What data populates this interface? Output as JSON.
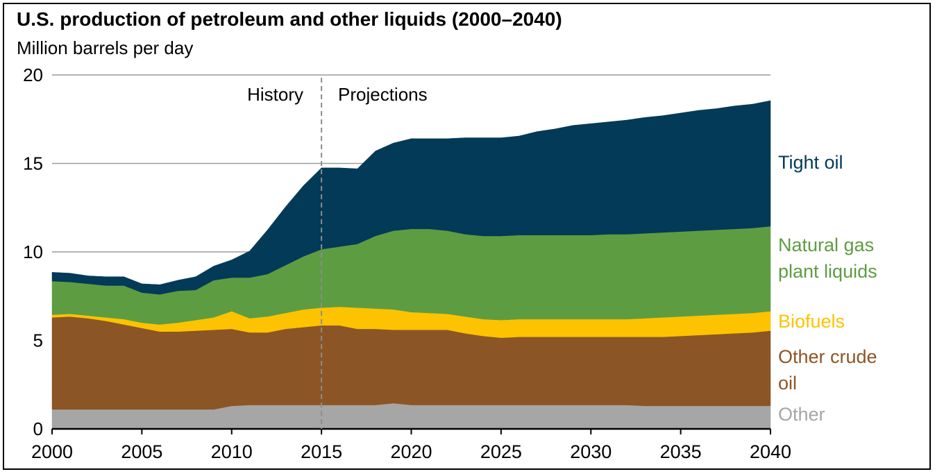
{
  "title": "U.S. production of petroleum and other liquids (2000–2040)",
  "subtitle": "Million barrels per day",
  "annotations": {
    "history": "History",
    "projections": "Projections"
  },
  "chart_data": {
    "type": "area",
    "stacked": true,
    "title": "U.S. production of petroleum and other liquids (2000–2040)",
    "ylabel": "Million barrels per day",
    "xlim": [
      2000,
      2040
    ],
    "ylim": [
      0,
      20
    ],
    "xticks": [
      "2000",
      "2005",
      "2010",
      "2015",
      "2020",
      "2025",
      "2030",
      "2035",
      "2040"
    ],
    "yticks": [
      "0",
      "5",
      "10",
      "15",
      "20"
    ],
    "grid": "horizontal",
    "divider_year": 2015,
    "legend": "right, labels beside series",
    "x": [
      2000,
      2001,
      2002,
      2003,
      2004,
      2005,
      2006,
      2007,
      2008,
      2009,
      2010,
      2011,
      2012,
      2013,
      2014,
      2015,
      2016,
      2017,
      2018,
      2019,
      2020,
      2021,
      2022,
      2023,
      2024,
      2025,
      2026,
      2027,
      2028,
      2029,
      2030,
      2031,
      2032,
      2033,
      2034,
      2035,
      2036,
      2037,
      2038,
      2039,
      2040
    ],
    "series": [
      {
        "name": "Other",
        "color": "#a6a6a6",
        "values": [
          1.1,
          1.1,
          1.1,
          1.1,
          1.1,
          1.1,
          1.1,
          1.1,
          1.1,
          1.1,
          1.3,
          1.35,
          1.35,
          1.35,
          1.35,
          1.35,
          1.35,
          1.35,
          1.35,
          1.45,
          1.35,
          1.35,
          1.35,
          1.35,
          1.35,
          1.35,
          1.35,
          1.35,
          1.35,
          1.35,
          1.35,
          1.35,
          1.35,
          1.3,
          1.3,
          1.3,
          1.3,
          1.3,
          1.3,
          1.3,
          1.3
        ]
      },
      {
        "name": "Other crude oil",
        "color": "#8c5526",
        "values": [
          5.2,
          5.25,
          5.15,
          5.0,
          4.8,
          4.6,
          4.4,
          4.4,
          4.45,
          4.5,
          4.35,
          4.1,
          4.1,
          4.3,
          4.4,
          4.5,
          4.5,
          4.3,
          4.3,
          4.15,
          4.25,
          4.25,
          4.25,
          4.05,
          3.9,
          3.8,
          3.85,
          3.85,
          3.85,
          3.85,
          3.85,
          3.85,
          3.85,
          3.9,
          3.9,
          3.95,
          4.0,
          4.05,
          4.1,
          4.15,
          4.25
        ]
      },
      {
        "name": "Biofuels",
        "color": "#fdc300",
        "values": [
          0.15,
          0.15,
          0.15,
          0.2,
          0.3,
          0.3,
          0.4,
          0.5,
          0.6,
          0.7,
          1.0,
          0.8,
          0.9,
          0.9,
          1.0,
          1.0,
          1.05,
          1.2,
          1.15,
          1.15,
          1.0,
          0.95,
          0.9,
          0.95,
          0.95,
          1.0,
          1.0,
          1.0,
          1.0,
          1.0,
          1.0,
          1.0,
          1.0,
          1.05,
          1.1,
          1.1,
          1.1,
          1.1,
          1.1,
          1.1,
          1.1
        ]
      },
      {
        "name": "Natural gas plant liquids",
        "color": "#5e9c42",
        "values": [
          1.9,
          1.8,
          1.8,
          1.8,
          1.9,
          1.7,
          1.7,
          1.8,
          1.7,
          2.1,
          1.9,
          2.3,
          2.4,
          2.7,
          3.0,
          3.3,
          3.4,
          3.6,
          4.1,
          4.45,
          4.7,
          4.75,
          4.7,
          4.65,
          4.7,
          4.75,
          4.75,
          4.75,
          4.75,
          4.75,
          4.75,
          4.8,
          4.8,
          4.8,
          4.8,
          4.8,
          4.8,
          4.8,
          4.8,
          4.8,
          4.8
        ]
      },
      {
        "name": "Tight oil",
        "color": "#033a57",
        "values": [
          0.5,
          0.5,
          0.45,
          0.5,
          0.5,
          0.5,
          0.55,
          0.6,
          0.75,
          0.8,
          1.0,
          1.5,
          2.5,
          3.3,
          4.0,
          4.6,
          4.45,
          4.25,
          4.8,
          4.95,
          5.1,
          5.1,
          5.2,
          5.45,
          5.55,
          5.55,
          5.6,
          5.85,
          6.0,
          6.2,
          6.3,
          6.35,
          6.45,
          6.55,
          6.6,
          6.7,
          6.8,
          6.85,
          6.95,
          7.0,
          7.1
        ]
      }
    ]
  },
  "colors": {
    "grid": "#9a9a9a",
    "divider": "#8c8c8c",
    "frame": "#000000"
  }
}
